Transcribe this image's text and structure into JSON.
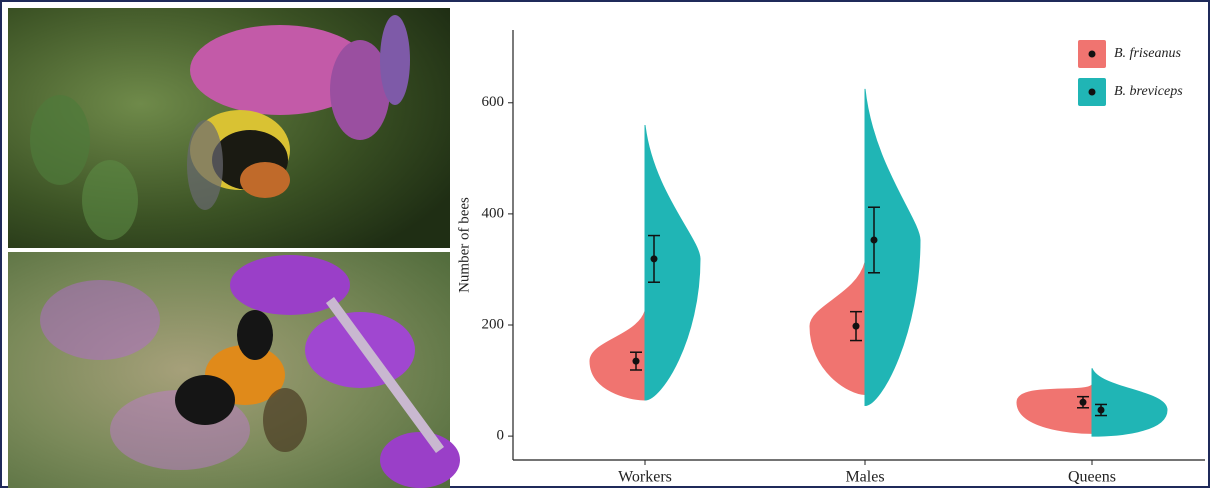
{
  "chart_data": {
    "type": "split-violin",
    "y_label": "Number of bees",
    "categories": [
      "Workers",
      "Males",
      "Queens"
    ],
    "ylim": [
      -43,
      731
    ],
    "yticks": [
      0,
      200,
      400,
      600
    ],
    "legend": "top-right",
    "series": [
      {
        "name": "B. friseanus",
        "color": "#f07470",
        "values": [
          135,
          198,
          61
        ],
        "errors": [
          16,
          26,
          10
        ],
        "mins": [
          65,
          75,
          5
        ],
        "maxs": [
          225,
          313,
          92
        ]
      },
      {
        "name": "B. breviceps",
        "color": "#20b5b5",
        "values": [
          319,
          353,
          47
        ],
        "errors": [
          42,
          59,
          10
        ],
        "mins": [
          65,
          55,
          0
        ],
        "maxs": [
          560,
          625,
          122
        ]
      }
    ]
  }
}
